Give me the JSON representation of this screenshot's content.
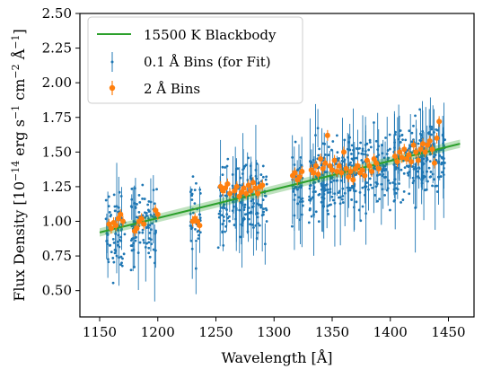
{
  "chart_data": {
    "type": "scatter",
    "xlabel": "Wavelength [Å]",
    "ylabel_parts": [
      "Flux Density [10",
      "−14",
      " erg s",
      "−1",
      " cm",
      "−2",
      " Å",
      "−1",
      "]"
    ],
    "xlim": [
      1133,
      1472
    ],
    "ylim": [
      0.31,
      2.5
    ],
    "xticks": [
      1150,
      1200,
      1250,
      1300,
      1350,
      1400,
      1450
    ],
    "yticks": [
      0.5,
      0.75,
      1.0,
      1.25,
      1.5,
      1.75,
      2.0,
      2.25,
      2.5
    ],
    "ytick_labels": [
      "0.50",
      "0.75",
      "1.00",
      "1.25",
      "1.50",
      "1.75",
      "2.00",
      "2.25",
      "2.50"
    ],
    "legend_position": "upper-left",
    "colors": {
      "fit": "#2ca02c",
      "fine": "#1f77b4",
      "coarse": "#ff7f0e"
    },
    "model": {
      "name": "15500 K Blackbody",
      "x": [
        1150,
        1460
      ],
      "y": [
        0.92,
        1.56
      ],
      "band": 0.03
    },
    "fine_bins": {
      "name": "0.1 Å Bins (for Fit)",
      "bin_width": 0.1,
      "segments": [
        [
          1155,
          1172
        ],
        [
          1177,
          1200
        ],
        [
          1228,
          1237
        ],
        [
          1252,
          1262
        ],
        [
          1264,
          1294
        ],
        [
          1315,
          1325
        ],
        [
          1330,
          1400
        ],
        [
          1402,
          1447
        ]
      ],
      "note_scatter": 0.3
    },
    "coarse_bins": {
      "name": "2 Å Bins",
      "points": [
        [
          1158,
          0.98
        ],
        [
          1160,
          0.95
        ],
        [
          1162,
          0.99
        ],
        [
          1164,
          0.97
        ],
        [
          1166,
          1.02
        ],
        [
          1168,
          1.05
        ],
        [
          1170,
          1.0
        ],
        [
          1180,
          0.93
        ],
        [
          1182,
          0.95
        ],
        [
          1184,
          1.0
        ],
        [
          1186,
          1.02
        ],
        [
          1188,
          0.98
        ],
        [
          1198,
          1.08
        ],
        [
          1200,
          1.05
        ],
        [
          1230,
          1.0
        ],
        [
          1232,
          1.02
        ],
        [
          1234,
          1.0
        ],
        [
          1236,
          0.97
        ],
        [
          1254,
          1.25
        ],
        [
          1256,
          1.22
        ],
        [
          1258,
          1.24
        ],
        [
          1260,
          1.27
        ],
        [
          1262,
          1.2
        ],
        [
          1266,
          1.22
        ],
        [
          1268,
          1.25
        ],
        [
          1270,
          1.18
        ],
        [
          1272,
          1.21
        ],
        [
          1274,
          1.24
        ],
        [
          1276,
          1.2
        ],
        [
          1278,
          1.26
        ],
        [
          1280,
          1.22
        ],
        [
          1282,
          1.28
        ],
        [
          1284,
          1.24
        ],
        [
          1286,
          1.2
        ],
        [
          1288,
          1.25
        ],
        [
          1290,
          1.26
        ],
        [
          1316,
          1.33
        ],
        [
          1318,
          1.35
        ],
        [
          1320,
          1.3
        ],
        [
          1322,
          1.32
        ],
        [
          1324,
          1.36
        ],
        [
          1332,
          1.37
        ],
        [
          1334,
          1.35
        ],
        [
          1336,
          1.4
        ],
        [
          1338,
          1.34
        ],
        [
          1340,
          1.45
        ],
        [
          1342,
          1.38
        ],
        [
          1344,
          1.42
        ],
        [
          1346,
          1.62
        ],
        [
          1348,
          1.4
        ],
        [
          1350,
          1.37
        ],
        [
          1352,
          1.44
        ],
        [
          1354,
          1.36
        ],
        [
          1356,
          1.4
        ],
        [
          1358,
          1.35
        ],
        [
          1360,
          1.5
        ],
        [
          1362,
          1.38
        ],
        [
          1364,
          1.32
        ],
        [
          1366,
          1.36
        ],
        [
          1368,
          1.3
        ],
        [
          1370,
          1.38
        ],
        [
          1372,
          1.4
        ],
        [
          1374,
          1.35
        ],
        [
          1376,
          1.37
        ],
        [
          1378,
          1.33
        ],
        [
          1380,
          1.44
        ],
        [
          1382,
          1.4
        ],
        [
          1384,
          1.36
        ],
        [
          1386,
          1.45
        ],
        [
          1388,
          1.42
        ],
        [
          1390,
          1.38
        ],
        [
          1404,
          1.47
        ],
        [
          1406,
          1.43
        ],
        [
          1408,
          1.5
        ],
        [
          1410,
          1.46
        ],
        [
          1412,
          1.52
        ],
        [
          1414,
          1.45
        ],
        [
          1416,
          1.48
        ],
        [
          1418,
          1.43
        ],
        [
          1420,
          1.55
        ],
        [
          1422,
          1.5
        ],
        [
          1424,
          1.44
        ],
        [
          1426,
          1.52
        ],
        [
          1428,
          1.56
        ],
        [
          1430,
          1.5
        ],
        [
          1432,
          1.55
        ],
        [
          1434,
          1.58
        ],
        [
          1436,
          1.52
        ],
        [
          1438,
          1.42
        ],
        [
          1440,
          1.6
        ],
        [
          1442,
          1.72
        ]
      ]
    }
  }
}
